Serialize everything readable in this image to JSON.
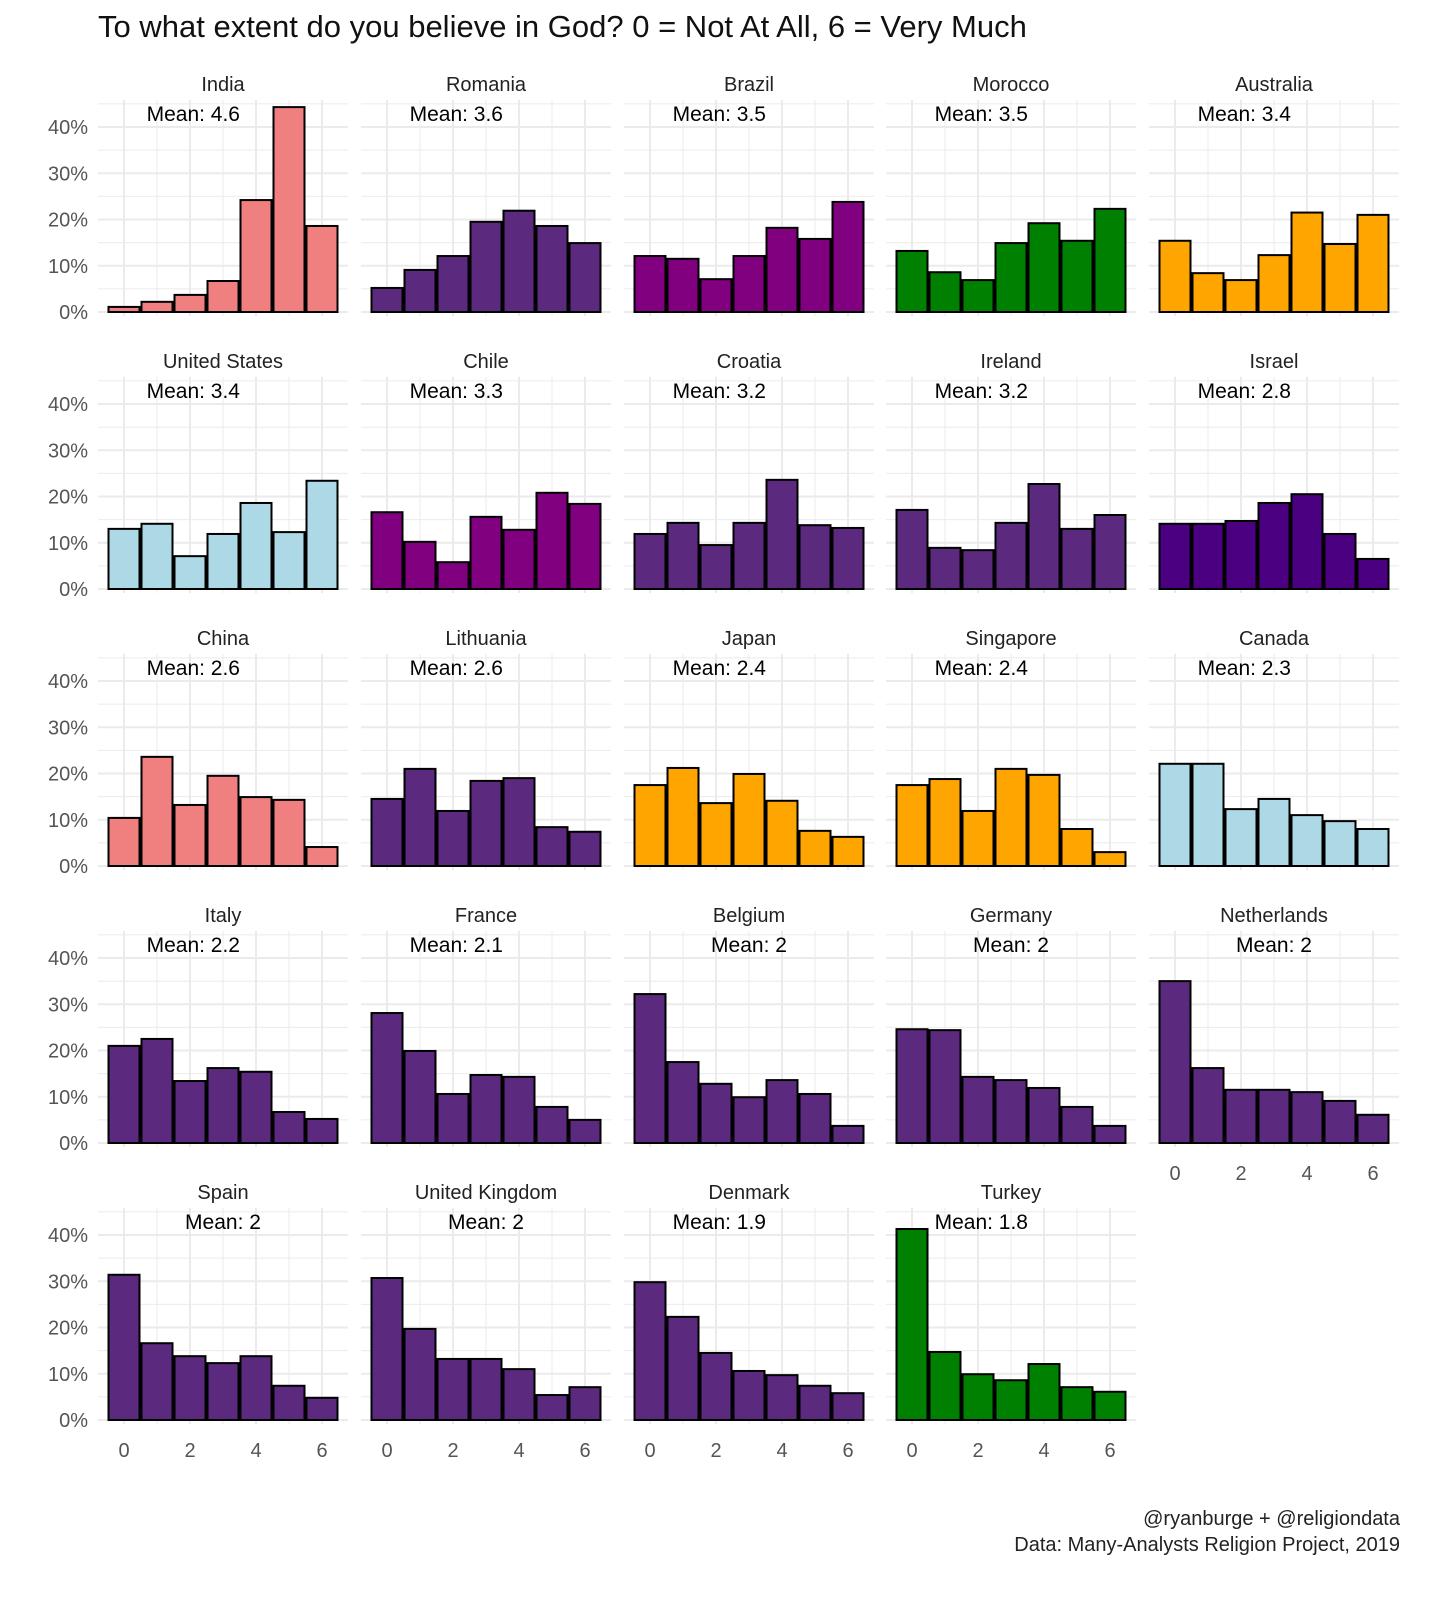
{
  "chart_data": {
    "type": "bar",
    "title": "To what extent do you believe in God? 0 = Not At All, 6 = Very Much",
    "caption": [
      "@ryanburge + @religiondata",
      "Data: Many-Analysts Religion Project, 2019"
    ],
    "xlabel": "",
    "ylabel": "",
    "x": [
      0,
      1,
      2,
      3,
      4,
      5,
      6
    ],
    "x_ticks": [
      "0",
      "2",
      "4",
      "6"
    ],
    "y_ticks": [
      "0%",
      "10%",
      "20%",
      "30%",
      "40%"
    ],
    "ylim": [
      0,
      45
    ],
    "grid": true,
    "mean_prefix": "Mean: ",
    "panels": [
      {
        "name": "India",
        "mean": "4.6",
        "color": "#F08080",
        "values": [
          1.1,
          2.2,
          3.7,
          6.7,
          24.2,
          44.3,
          18.6
        ]
      },
      {
        "name": "Romania",
        "mean": "3.6",
        "color": "#5B2A7E",
        "values": [
          5.2,
          9.1,
          12.1,
          19.5,
          21.9,
          18.6,
          14.9
        ]
      },
      {
        "name": "Brazil",
        "mean": "3.5",
        "color": "#800080",
        "values": [
          12.1,
          11.5,
          7.1,
          12.1,
          18.2,
          15.8,
          23.8
        ]
      },
      {
        "name": "Morocco",
        "mean": "3.5",
        "color": "#008000",
        "values": [
          13.2,
          8.6,
          6.9,
          14.9,
          19.2,
          15.4,
          22.3
        ]
      },
      {
        "name": "Australia",
        "mean": "3.4",
        "color": "#FFA500",
        "values": [
          15.4,
          8.4,
          6.9,
          12.3,
          21.5,
          14.7,
          21.0
        ]
      },
      {
        "name": "United States",
        "mean": "3.4",
        "color": "#ADD8E6",
        "values": [
          13.0,
          14.1,
          7.1,
          11.9,
          18.6,
          12.3,
          23.4
        ]
      },
      {
        "name": "Chile",
        "mean": "3.3",
        "color": "#800080",
        "values": [
          16.6,
          10.2,
          5.8,
          15.6,
          12.8,
          20.8,
          18.4
        ]
      },
      {
        "name": "Croatia",
        "mean": "3.2",
        "color": "#5B2A7E",
        "values": [
          11.9,
          14.3,
          9.5,
          14.3,
          23.6,
          13.8,
          13.2
        ]
      },
      {
        "name": "Ireland",
        "mean": "3.2",
        "color": "#5B2A7E",
        "values": [
          17.1,
          8.9,
          8.4,
          14.3,
          22.7,
          13.0,
          16.0
        ]
      },
      {
        "name": "Israel",
        "mean": "2.8",
        "color": "#4B0082",
        "values": [
          14.1,
          14.1,
          14.7,
          18.6,
          20.5,
          11.9,
          6.5
        ]
      },
      {
        "name": "China",
        "mean": "2.6",
        "color": "#F08080",
        "values": [
          10.4,
          23.6,
          13.2,
          19.5,
          14.9,
          14.3,
          4.1
        ]
      },
      {
        "name": "Lithuania",
        "mean": "2.6",
        "color": "#5B2A7E",
        "values": [
          14.5,
          21.0,
          11.9,
          18.4,
          19.0,
          8.4,
          7.4
        ]
      },
      {
        "name": "Japan",
        "mean": "2.4",
        "color": "#FFA500",
        "values": [
          17.5,
          21.2,
          13.6,
          19.9,
          14.1,
          7.6,
          6.3
        ]
      },
      {
        "name": "Singapore",
        "mean": "2.4",
        "color": "#FFA500",
        "values": [
          17.5,
          18.8,
          11.9,
          21.0,
          19.7,
          8.0,
          3.0
        ]
      },
      {
        "name": "Canada",
        "mean": "2.3",
        "color": "#ADD8E6",
        "values": [
          22.1,
          22.1,
          12.3,
          14.5,
          11.0,
          9.7,
          8.0
        ]
      },
      {
        "name": "Italy",
        "mean": "2.2",
        "color": "#5B2A7E",
        "values": [
          21.0,
          22.5,
          13.4,
          16.2,
          15.4,
          6.7,
          5.2
        ]
      },
      {
        "name": "France",
        "mean": "2.1",
        "color": "#5B2A7E",
        "values": [
          28.1,
          19.9,
          10.6,
          14.7,
          14.3,
          7.8,
          5.0
        ]
      },
      {
        "name": "Belgium",
        "mean": "2",
        "color": "#5B2A7E",
        "values": [
          32.2,
          17.5,
          12.8,
          9.9,
          13.6,
          10.6,
          3.7
        ]
      },
      {
        "name": "Germany",
        "mean": "2",
        "color": "#5B2A7E",
        "values": [
          24.6,
          24.4,
          14.3,
          13.6,
          11.9,
          7.8,
          3.7
        ]
      },
      {
        "name": "Netherlands",
        "mean": "2",
        "color": "#5B2A7E",
        "values": [
          35.0,
          16.2,
          11.5,
          11.5,
          11.0,
          9.1,
          6.1
        ]
      },
      {
        "name": "Spain",
        "mean": "2",
        "color": "#5B2A7E",
        "values": [
          31.4,
          16.6,
          13.8,
          12.3,
          13.8,
          7.4,
          4.8
        ]
      },
      {
        "name": "United Kingdom",
        "mean": "2",
        "color": "#5B2A7E",
        "values": [
          30.7,
          19.7,
          13.2,
          13.2,
          11.0,
          5.4,
          7.1
        ]
      },
      {
        "name": "Denmark",
        "mean": "1.9",
        "color": "#5B2A7E",
        "values": [
          29.8,
          22.3,
          14.5,
          10.6,
          9.7,
          7.4,
          5.8
        ]
      },
      {
        "name": "Turkey",
        "mean": "1.8",
        "color": "#008000",
        "values": [
          41.3,
          14.7,
          9.9,
          8.6,
          12.1,
          7.1,
          6.1
        ]
      }
    ]
  }
}
